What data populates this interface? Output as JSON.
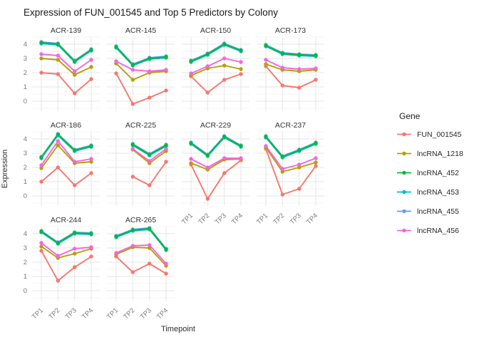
{
  "title": "Expression of FUN_001545 and Top 5 Predictors by Colony",
  "axes": {
    "x_title": "Timepoint",
    "y_title": "Expression",
    "x_ticks": [
      "TP1",
      "TP2",
      "TP3",
      "TP4"
    ],
    "y_ticks": [
      0,
      1,
      2,
      3,
      4
    ]
  },
  "legend": {
    "title": "Gene",
    "position": "right",
    "items": [
      {
        "label": "FUN_001545",
        "color": "#F8766D"
      },
      {
        "label": "lncRNA_1218",
        "color": "#B79F00"
      },
      {
        "label": "lncRNA_452",
        "color": "#00BA38"
      },
      {
        "label": "lncRNA_453",
        "color": "#00BFC4"
      },
      {
        "label": "lncRNA_455",
        "color": "#619CFF"
      },
      {
        "label": "lncRNA_456",
        "color": "#F564E3"
      }
    ]
  },
  "chart_data": {
    "type": "line",
    "title": "Expression of FUN_001545 and Top 5 Predictors by Colony",
    "xlabel": "Timepoint",
    "ylabel": "Expression",
    "x": [
      "TP1",
      "TP2",
      "TP3",
      "TP4"
    ],
    "y_tick_values": [
      0,
      1,
      2,
      3,
      4
    ],
    "axis_range": [
      -0.7,
      4.5
    ],
    "grid": "major+minor",
    "legend_position": "right",
    "facets": [
      {
        "name": "ACR-139",
        "series": {
          "FUN_001545": [
            2.0,
            1.9,
            0.55,
            1.55
          ],
          "lncRNA_1218": [
            3.0,
            2.9,
            1.85,
            2.4
          ],
          "lncRNA_452": [
            4.1,
            4.0,
            2.8,
            3.6
          ],
          "lncRNA_453": [
            4.05,
            3.95,
            2.75,
            3.55
          ],
          "lncRNA_455": [
            4.15,
            4.05,
            2.85,
            3.65
          ],
          "lncRNA_456": [
            3.3,
            3.2,
            2.1,
            2.9
          ]
        }
      },
      {
        "name": "ACR-145",
        "series": {
          "FUN_001545": [
            1.95,
            -0.2,
            0.25,
            0.75
          ],
          "lncRNA_1218": [
            2.65,
            1.5,
            2.0,
            2.1
          ],
          "lncRNA_452": [
            3.8,
            2.55,
            3.0,
            3.1
          ],
          "lncRNA_453": [
            3.75,
            2.5,
            2.95,
            3.05
          ],
          "lncRNA_455": [
            3.85,
            2.6,
            3.05,
            3.15
          ],
          "lncRNA_456": [
            2.8,
            2.2,
            2.1,
            2.2
          ]
        }
      },
      {
        "name": "ACR-150",
        "series": {
          "FUN_001545": [
            1.75,
            0.6,
            1.5,
            1.9
          ],
          "lncRNA_1218": [
            1.8,
            2.3,
            2.5,
            2.25
          ],
          "lncRNA_452": [
            2.8,
            3.3,
            4.0,
            3.55
          ],
          "lncRNA_453": [
            2.75,
            3.25,
            3.95,
            3.5
          ],
          "lncRNA_455": [
            2.85,
            3.35,
            4.05,
            3.6
          ],
          "lncRNA_456": [
            1.95,
            2.45,
            3.0,
            2.75
          ]
        }
      },
      {
        "name": "ACR-173",
        "series": {
          "FUN_001545": [
            2.45,
            1.1,
            0.95,
            1.5
          ],
          "lncRNA_1218": [
            2.6,
            2.2,
            2.1,
            2.2
          ],
          "lncRNA_452": [
            3.9,
            3.35,
            3.25,
            3.2
          ],
          "lncRNA_453": [
            3.85,
            3.3,
            3.2,
            3.15
          ],
          "lncRNA_455": [
            3.95,
            3.4,
            3.3,
            3.25
          ],
          "lncRNA_456": [
            2.9,
            2.35,
            2.25,
            2.3
          ]
        }
      },
      {
        "name": "ACR-186",
        "series": {
          "FUN_001545": [
            1.0,
            2.0,
            0.75,
            1.6
          ],
          "lncRNA_1218": [
            1.95,
            3.55,
            2.3,
            2.4
          ],
          "lncRNA_452": [
            2.7,
            4.3,
            3.2,
            3.5
          ],
          "lncRNA_453": [
            2.65,
            4.25,
            3.15,
            3.45
          ],
          "lncRNA_455": [
            2.75,
            4.35,
            3.25,
            3.55
          ],
          "lncRNA_456": [
            2.15,
            3.85,
            2.4,
            2.6
          ]
        }
      },
      {
        "name": "ACR-225",
        "series": {
          "FUN_001545": [
            null,
            1.35,
            0.75,
            2.4
          ],
          "lncRNA_1218": [
            null,
            3.25,
            2.3,
            3.15
          ],
          "lncRNA_452": [
            null,
            3.6,
            2.9,
            3.55
          ],
          "lncRNA_453": [
            null,
            3.55,
            2.85,
            3.5
          ],
          "lncRNA_455": [
            null,
            3.65,
            2.95,
            3.6
          ],
          "lncRNA_456": [
            null,
            3.3,
            2.45,
            3.3
          ]
        }
      },
      {
        "name": "ACR-229",
        "series": {
          "FUN_001545": [
            2.2,
            -0.2,
            1.6,
            2.5
          ],
          "lncRNA_1218": [
            2.3,
            1.85,
            2.55,
            2.6
          ],
          "lncRNA_452": [
            3.7,
            2.85,
            4.15,
            3.5
          ],
          "lncRNA_453": [
            3.65,
            2.8,
            4.1,
            3.45
          ],
          "lncRNA_455": [
            3.75,
            2.9,
            4.2,
            3.55
          ],
          "lncRNA_456": [
            2.6,
            2.0,
            2.65,
            2.65
          ]
        }
      },
      {
        "name": "ACR-237",
        "series": {
          "FUN_001545": [
            3.3,
            0.1,
            0.5,
            2.1
          ],
          "lncRNA_1218": [
            3.4,
            1.7,
            2.0,
            2.35
          ],
          "lncRNA_452": [
            4.15,
            2.75,
            3.2,
            3.7
          ],
          "lncRNA_453": [
            4.1,
            2.7,
            3.15,
            3.65
          ],
          "lncRNA_455": [
            4.2,
            2.8,
            3.25,
            3.75
          ],
          "lncRNA_456": [
            3.5,
            1.9,
            2.2,
            2.65
          ]
        }
      },
      {
        "name": "ACR-244",
        "series": {
          "FUN_001545": [
            2.8,
            0.7,
            1.65,
            2.4
          ],
          "lncRNA_1218": [
            3.1,
            2.3,
            2.6,
            2.95
          ],
          "lncRNA_452": [
            4.15,
            3.35,
            4.05,
            4.0
          ],
          "lncRNA_453": [
            4.1,
            3.3,
            4.0,
            3.95
          ],
          "lncRNA_455": [
            4.2,
            3.4,
            4.1,
            4.05
          ],
          "lncRNA_456": [
            3.35,
            2.45,
            2.95,
            3.05
          ]
        }
      },
      {
        "name": "ACR-265",
        "series": {
          "FUN_001545": [
            2.4,
            1.3,
            1.9,
            1.2
          ],
          "lncRNA_1218": [
            2.55,
            3.05,
            3.0,
            1.75
          ],
          "lncRNA_452": [
            3.8,
            4.25,
            4.35,
            2.9
          ],
          "lncRNA_453": [
            3.75,
            4.2,
            4.3,
            2.85
          ],
          "lncRNA_455": [
            3.85,
            4.3,
            4.4,
            2.95
          ],
          "lncRNA_456": [
            2.65,
            3.15,
            3.2,
            1.9
          ]
        }
      }
    ]
  }
}
